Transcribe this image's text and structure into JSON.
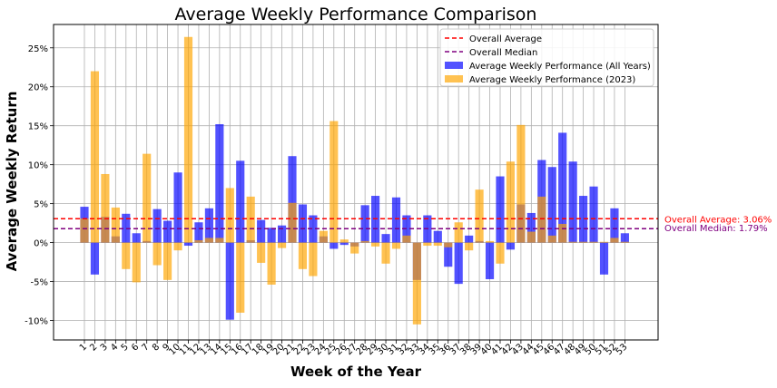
{
  "chart_data": {
    "type": "bar",
    "title": "Average Weekly Performance Comparison",
    "xlabel": "Week of the Year",
    "ylabel": "Average Weekly Return",
    "ylim": [
      -12.5,
      28
    ],
    "yticks": [
      -10,
      -5,
      0,
      5,
      10,
      15,
      20,
      25
    ],
    "ytick_labels": [
      "-10%",
      "-5%",
      "0%",
      "5%",
      "10%",
      "15%",
      "20%",
      "25%"
    ],
    "grid": true,
    "legend_position": "top-right",
    "categories": [
      "1",
      "2",
      "3",
      "4",
      "5",
      "6",
      "7",
      "8",
      "9",
      "10",
      "11",
      "12",
      "13",
      "14",
      "15",
      "16",
      "17",
      "18",
      "19",
      "20",
      "21",
      "22",
      "23",
      "24",
      "25",
      "26",
      "27",
      "28",
      "29",
      "30",
      "31",
      "32",
      "33",
      "34",
      "35",
      "36",
      "37",
      "38",
      "39",
      "40",
      "41",
      "42",
      "43",
      "44",
      "45",
      "46",
      "47",
      "48",
      "49",
      "50",
      "51",
      "52",
      "53"
    ],
    "series": [
      {
        "name": "Average Weekly Performance (All Years)",
        "color": "#0000ff",
        "values": [
          4.6,
          -4.1,
          3.3,
          0.8,
          3.7,
          1.2,
          0.2,
          4.3,
          2.8,
          9.0,
          -0.4,
          2.6,
          4.4,
          15.2,
          -9.9,
          10.5,
          0.3,
          2.9,
          1.9,
          2.2,
          11.1,
          4.9,
          3.5,
          0.8,
          -0.8,
          -0.3,
          -0.5,
          4.8,
          6.0,
          1.1,
          5.8,
          3.5,
          -4.8,
          3.5,
          1.5,
          -3.1,
          -5.3,
          0.9,
          0.2,
          -4.7,
          8.5,
          -0.9,
          4.9,
          3.8,
          10.6,
          9.7,
          14.1,
          10.4,
          6.0,
          7.2,
          -4.1,
          4.4,
          1.2
        ]
      },
      {
        "name": "Average Weekly Performance (2023)",
        "color": "#ffa500",
        "values": [
          3.1,
          22.0,
          8.8,
          4.5,
          -3.4,
          -5.1,
          11.4,
          -2.9,
          -4.8,
          -1.0,
          26.4,
          0.3,
          0.6,
          0.6,
          7.0,
          -9.0,
          5.9,
          -2.6,
          -5.4,
          -0.7,
          5.1,
          -3.4,
          -4.3,
          1.5,
          15.6,
          0.4,
          -1.4,
          0.2,
          -0.5,
          -2.7,
          -0.8,
          0.9,
          -10.5,
          -0.4,
          -0.4,
          -0.6,
          2.6,
          -1.0,
          6.8,
          0.2,
          -2.7,
          10.4,
          15.1,
          1.4,
          5.9,
          0.9,
          2.4,
          0.1,
          0.1,
          0.1,
          0.1,
          0.6,
          0.1
        ]
      }
    ],
    "reference_lines": [
      {
        "name": "Overall Average",
        "value": 3.06,
        "color": "#ff0000",
        "label": "Overall Average: 3.06%"
      },
      {
        "name": "Overall Median",
        "value": 1.79,
        "color": "#800080",
        "label": "Overall Median: 1.79%"
      }
    ],
    "legend": [
      "Overall Average",
      "Overall Median",
      "Average Weekly Performance (All Years)",
      "Average Weekly Performance (2023)"
    ]
  }
}
